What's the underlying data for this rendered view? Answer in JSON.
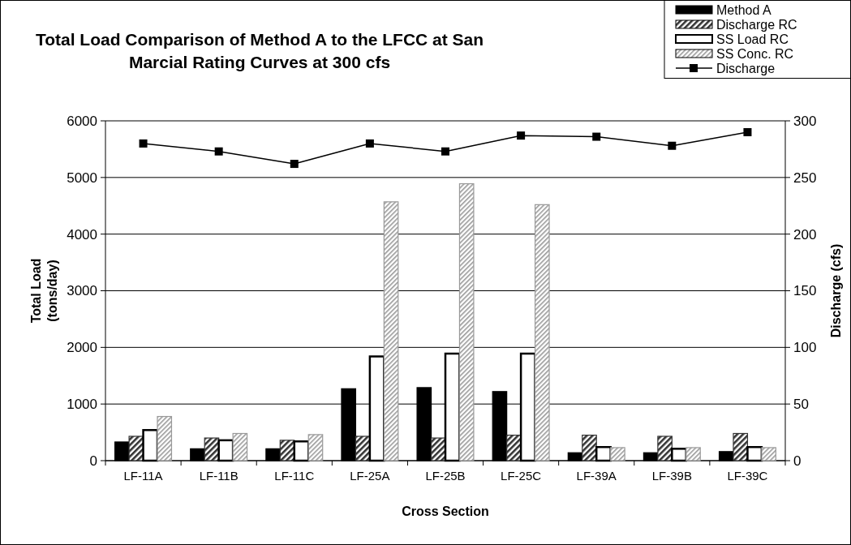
{
  "chart_data": {
    "type": "bar",
    "title": "Total Load Comparison of Method A to the LFCC at San Marcial Rating Curves at 300 cfs",
    "xlabel": "Cross Section",
    "ylabel": "Total Load (tons/day)",
    "y2label": "Discharge (cfs)",
    "categories": [
      "LF-11A",
      "LF-11B",
      "LF-11C",
      "LF-25A",
      "LF-25B",
      "LF-25C",
      "LF-39A",
      "LF-39B",
      "LF-39C"
    ],
    "series": [
      {
        "name": "Method A",
        "color": "#000000",
        "values": [
          330,
          210,
          210,
          1270,
          1290,
          1220,
          140,
          140,
          160
        ]
      },
      {
        "name": "Discharge RC",
        "color": "#333333",
        "values": [
          430,
          400,
          360,
          430,
          400,
          450,
          450,
          430,
          480
        ]
      },
      {
        "name": "SS Load RC",
        "color": "#ffffff",
        "values": [
          540,
          360,
          340,
          1840,
          1890,
          1890,
          240,
          210,
          240
        ]
      },
      {
        "name": "SS Conc. RC",
        "color": "#999999",
        "values": [
          780,
          480,
          460,
          4570,
          4890,
          4520,
          230,
          230,
          230
        ]
      },
      {
        "name": "Discharge",
        "type": "line",
        "axis": "y2",
        "color": "#000000",
        "marker": "square",
        "line_style": "solid",
        "values": [
          280,
          273,
          262,
          280,
          273,
          287,
          286,
          278,
          290
        ]
      }
    ],
    "ylim": [
      0,
      6000
    ],
    "yticks": [
      0,
      1000,
      2000,
      3000,
      4000,
      5000,
      6000
    ],
    "y2lim": [
      0,
      300
    ],
    "y2ticks": [
      0,
      50,
      100,
      150,
      200,
      250,
      300
    ],
    "grid": "y",
    "legend": "top right"
  }
}
